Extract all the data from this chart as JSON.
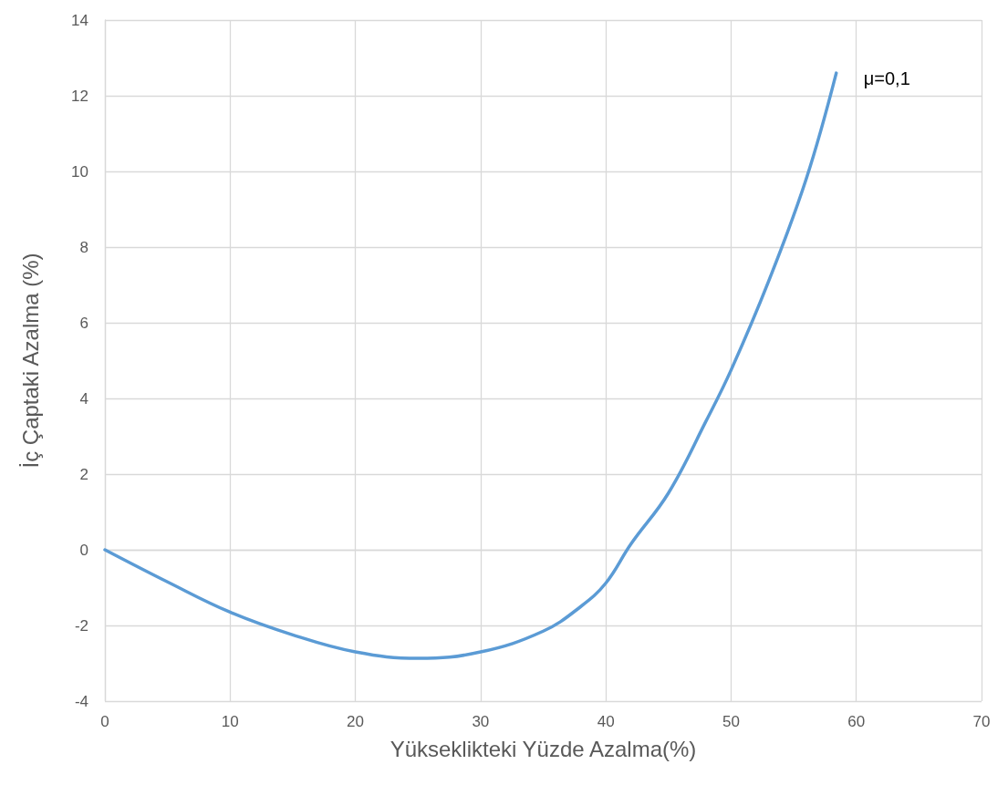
{
  "chart_data": {
    "type": "line",
    "xlabel": "Yükseklikteki Yüzde Azalma(%)",
    "ylabel": "İç Çaptaki Azalma (%)",
    "x": [
      0,
      5,
      10,
      15,
      20,
      25,
      30,
      35,
      38,
      40,
      42,
      45,
      48,
      50,
      53,
      56,
      58.4
    ],
    "series": [
      {
        "name": "μ=0,1",
        "color": "#5b9bd5",
        "values": [
          0,
          -0.85,
          -1.65,
          -2.25,
          -2.7,
          -2.87,
          -2.7,
          -2.15,
          -1.5,
          -0.88,
          0.15,
          1.5,
          3.4,
          4.75,
          7.1,
          9.8,
          12.6
        ]
      }
    ],
    "xlim": [
      0,
      70
    ],
    "xticks": [
      0,
      10,
      20,
      30,
      40,
      50,
      60,
      70
    ],
    "ylim": [
      -4,
      14
    ],
    "yticks": [
      -4,
      -2,
      0,
      2,
      4,
      6,
      8,
      10,
      12,
      14
    ],
    "grid": true,
    "legend": false,
    "marker": "none",
    "line_style": "solid"
  }
}
